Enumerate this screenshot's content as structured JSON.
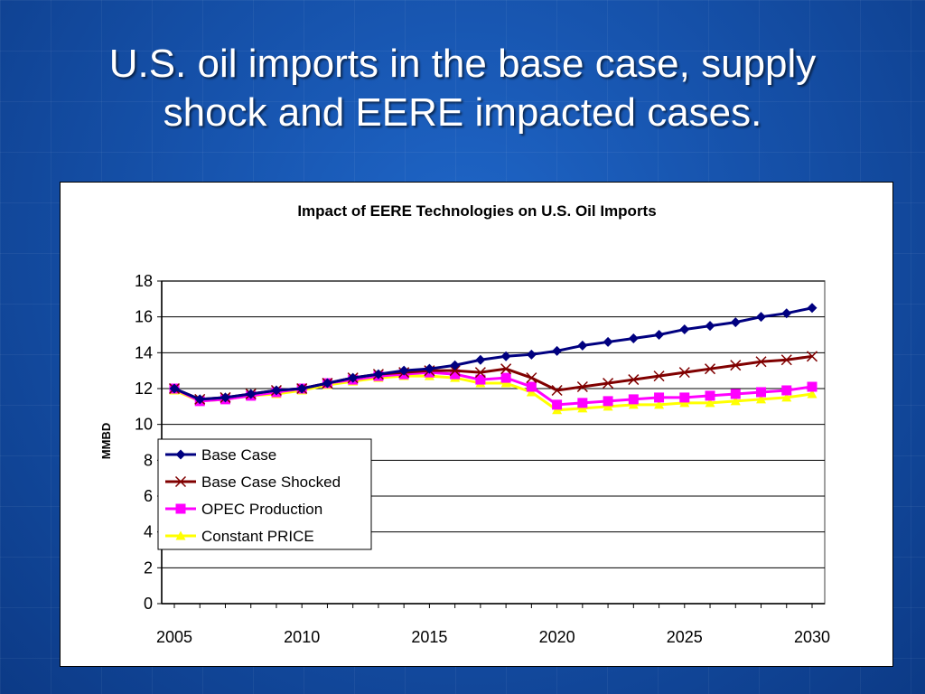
{
  "slide": {
    "title_line1": "U.S. oil imports in the base case, supply",
    "title_line2": "shock and EERE impacted cases."
  },
  "chart_data": {
    "type": "line",
    "title": "Impact of EERE Technologies on U.S. Oil Imports",
    "xlabel": "",
    "ylabel": "MMBD",
    "xlim": [
      2005,
      2030
    ],
    "ylim": [
      0,
      18
    ],
    "x_ticks": [
      2005,
      2010,
      2015,
      2020,
      2025,
      2030
    ],
    "y_ticks": [
      0,
      2,
      4,
      6,
      8,
      10,
      12,
      14,
      16,
      18
    ],
    "grid": "horizontal",
    "legend_position": "center-left",
    "x": [
      2005,
      2006,
      2007,
      2008,
      2009,
      2010,
      2011,
      2012,
      2013,
      2014,
      2015,
      2016,
      2017,
      2018,
      2019,
      2020,
      2021,
      2022,
      2023,
      2024,
      2025,
      2026,
      2027,
      2028,
      2029,
      2030
    ],
    "series": [
      {
        "name": "Base Case",
        "color": "#000080",
        "marker": "diamond",
        "values": [
          12.0,
          11.4,
          11.5,
          11.7,
          11.9,
          12.0,
          12.3,
          12.6,
          12.8,
          13.0,
          13.1,
          13.3,
          13.6,
          13.8,
          13.9,
          14.1,
          14.4,
          14.6,
          14.8,
          15.0,
          15.3,
          15.5,
          15.7,
          16.0,
          16.2,
          16.5
        ]
      },
      {
        "name": "Base Case Shocked",
        "color": "#800000",
        "marker": "x",
        "values": [
          12.0,
          11.4,
          11.5,
          11.7,
          11.9,
          12.0,
          12.3,
          12.6,
          12.8,
          12.9,
          13.0,
          13.0,
          12.9,
          13.1,
          12.6,
          11.9,
          12.1,
          12.3,
          12.5,
          12.7,
          12.9,
          13.1,
          13.3,
          13.5,
          13.6,
          13.8
        ]
      },
      {
        "name": "OPEC Production",
        "color": "#ff00ff",
        "marker": "square",
        "values": [
          12.0,
          11.3,
          11.4,
          11.6,
          11.8,
          12.0,
          12.3,
          12.5,
          12.7,
          12.8,
          12.9,
          12.8,
          12.5,
          12.6,
          12.1,
          11.1,
          11.2,
          11.3,
          11.4,
          11.5,
          11.5,
          11.6,
          11.7,
          11.8,
          11.9,
          12.1
        ]
      },
      {
        "name": "Constant PRICE",
        "color": "#ffff00",
        "marker": "triangle",
        "values": [
          11.9,
          11.3,
          11.4,
          11.6,
          11.7,
          11.9,
          12.2,
          12.4,
          12.6,
          12.7,
          12.7,
          12.6,
          12.3,
          12.3,
          11.8,
          10.8,
          10.9,
          11.0,
          11.1,
          11.1,
          11.2,
          11.2,
          11.3,
          11.4,
          11.5,
          11.7
        ]
      }
    ]
  }
}
